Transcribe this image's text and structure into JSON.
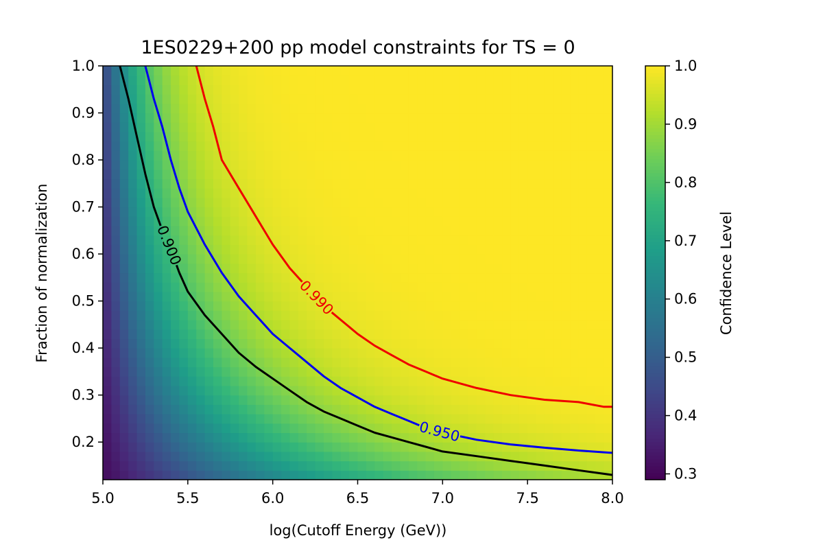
{
  "chart_data": {
    "type": "heatmap",
    "title": "1ES0229+200 pp model constraints for TS = 0",
    "xlabel": "log(Cutoff Energy (GeV))",
    "ylabel": "Fraction of normalization",
    "colorbar_label": "Confidence Level",
    "colormap": "viridis",
    "xlim": [
      5.0,
      8.0
    ],
    "ylim": [
      0.12,
      1.0
    ],
    "clim": [
      0.29,
      1.0
    ],
    "xticks": [
      "5.0",
      "5.5",
      "6.0",
      "6.5",
      "7.0",
      "7.5",
      "8.0"
    ],
    "yticks": [
      "0.2",
      "0.3",
      "0.4",
      "0.5",
      "0.6",
      "0.7",
      "0.8",
      "0.9",
      "1.0"
    ],
    "cbar_ticks": [
      "0.3",
      "0.4",
      "0.5",
      "0.6",
      "0.7",
      "0.8",
      "0.9",
      "1.0"
    ],
    "grid": false,
    "contours": [
      {
        "level": 0.9,
        "label": "0.900",
        "color": "#000000",
        "x": [
          5.1,
          5.15,
          5.2,
          5.25,
          5.3,
          5.35,
          5.4,
          5.45,
          5.5,
          5.6,
          5.7,
          5.8,
          5.9,
          6.0,
          6.1,
          6.2,
          6.3,
          6.4,
          6.5,
          6.6,
          6.7,
          6.8,
          6.9,
          7.0,
          7.2,
          7.4,
          7.6,
          7.8,
          8.0
        ],
        "y": [
          1.0,
          0.93,
          0.85,
          0.77,
          0.7,
          0.65,
          0.61,
          0.56,
          0.52,
          0.47,
          0.43,
          0.39,
          0.36,
          0.335,
          0.31,
          0.285,
          0.265,
          0.25,
          0.235,
          0.22,
          0.21,
          0.2,
          0.19,
          0.18,
          0.17,
          0.16,
          0.15,
          0.14,
          0.13
        ]
      },
      {
        "level": 0.95,
        "label": "0.950",
        "color": "#0000ee",
        "x": [
          5.25,
          5.3,
          5.35,
          5.4,
          5.45,
          5.5,
          5.6,
          5.7,
          5.8,
          5.9,
          6.0,
          6.1,
          6.2,
          6.3,
          6.4,
          6.5,
          6.6,
          6.7,
          6.8,
          6.9,
          7.0,
          7.2,
          7.4,
          7.6,
          7.8,
          8.0
        ],
        "y": [
          1.0,
          0.93,
          0.87,
          0.8,
          0.74,
          0.69,
          0.62,
          0.56,
          0.51,
          0.47,
          0.43,
          0.4,
          0.37,
          0.34,
          0.315,
          0.295,
          0.275,
          0.26,
          0.245,
          0.23,
          0.22,
          0.205,
          0.195,
          0.188,
          0.182,
          0.177
        ]
      },
      {
        "level": 0.99,
        "label": "0.990",
        "color": "#ee0000",
        "x": [
          5.55,
          5.6,
          5.65,
          5.7,
          5.8,
          5.9,
          6.0,
          6.1,
          6.2,
          6.3,
          6.4,
          6.5,
          6.6,
          6.7,
          6.8,
          6.9,
          7.0,
          7.2,
          7.4,
          7.6,
          7.8,
          7.95,
          8.0
        ],
        "y": [
          1.0,
          0.93,
          0.87,
          0.8,
          0.74,
          0.68,
          0.62,
          0.57,
          0.53,
          0.49,
          0.46,
          0.43,
          0.405,
          0.385,
          0.365,
          0.35,
          0.335,
          0.315,
          0.3,
          0.29,
          0.285,
          0.275,
          0.275
        ]
      }
    ]
  }
}
